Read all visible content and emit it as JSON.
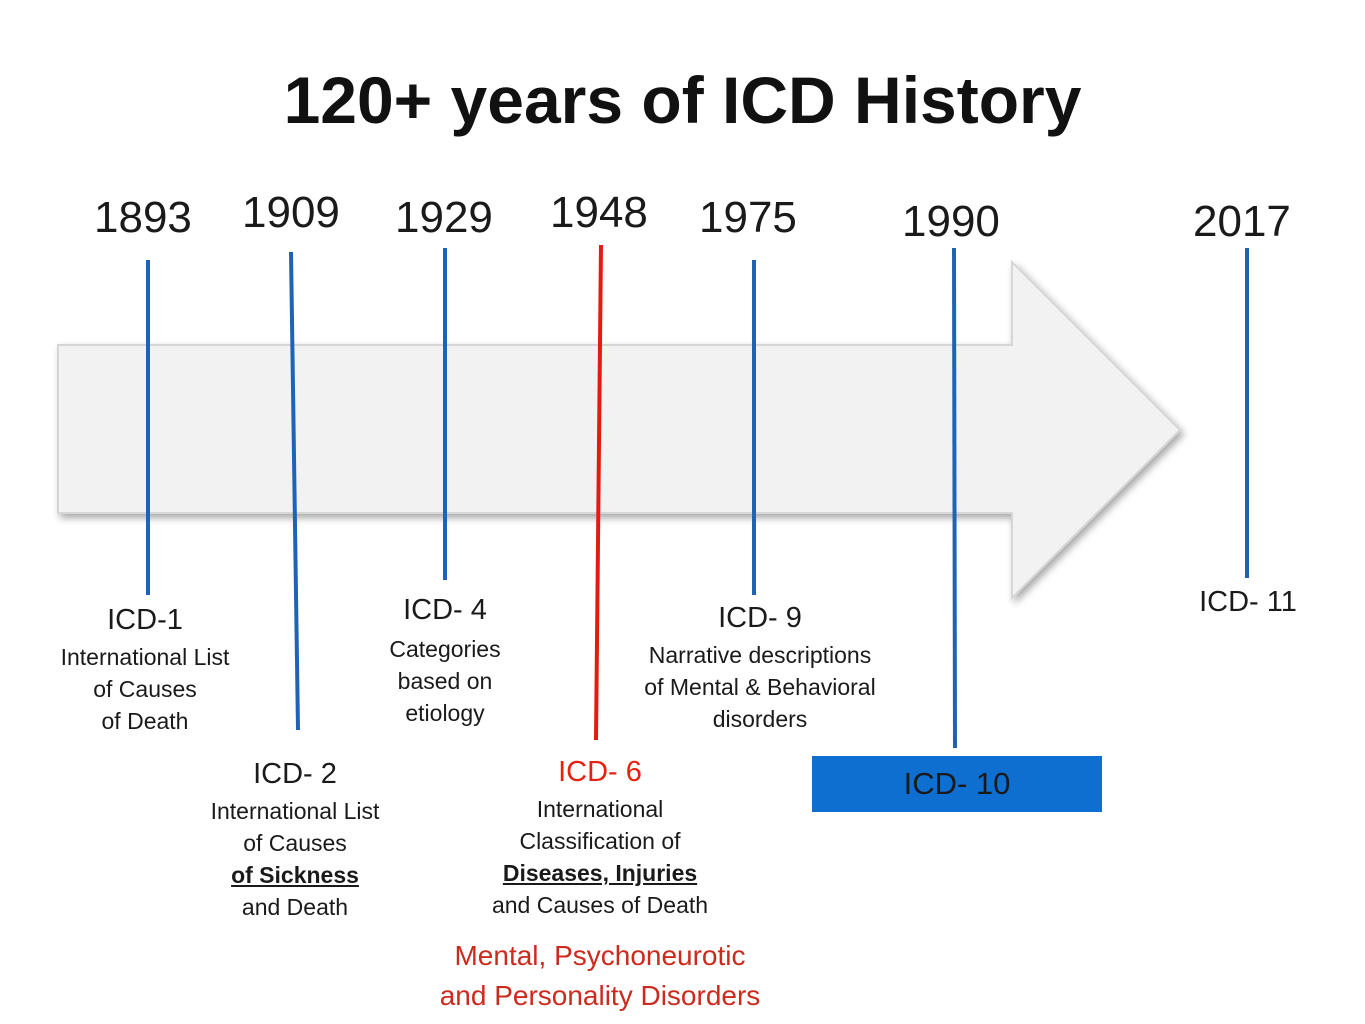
{
  "title": "120+ years of ICD History",
  "colors": {
    "line_blue": "#1e63b5",
    "line_red": "#e31b10",
    "accent_red": "#cc2a1d",
    "box_blue": "#0f6fd1",
    "arrow_fill": "#f2f2f2"
  },
  "years": [
    "1893",
    "1909",
    "1929",
    "1948",
    "1975",
    "1990",
    "2017"
  ],
  "icd1": {
    "label": "ICD-1",
    "lines": [
      "International List",
      "of Causes",
      "of Death"
    ]
  },
  "icd2": {
    "label": "ICD- 2",
    "lines": [
      "International List",
      "of Causes"
    ],
    "emphasis": "of Sickness",
    "last": "and Death"
  },
  "icd4": {
    "label": "ICD- 4",
    "lines": [
      "Categories",
      "based on",
      "etiology"
    ]
  },
  "icd6": {
    "label": "ICD- 6",
    "lines": [
      "International",
      "Classification of"
    ],
    "emphasis": "Diseases, Injuries",
    "last": "and Causes of Death",
    "mental": [
      "Mental, Psychoneurotic",
      "and Personality Disorders"
    ]
  },
  "icd9": {
    "label": "ICD- 9",
    "lines": [
      "Narrative descriptions",
      "of Mental & Behavioral",
      "disorders"
    ]
  },
  "icd10": {
    "label": "ICD- 10"
  },
  "icd11": {
    "label": "ICD- 11"
  }
}
